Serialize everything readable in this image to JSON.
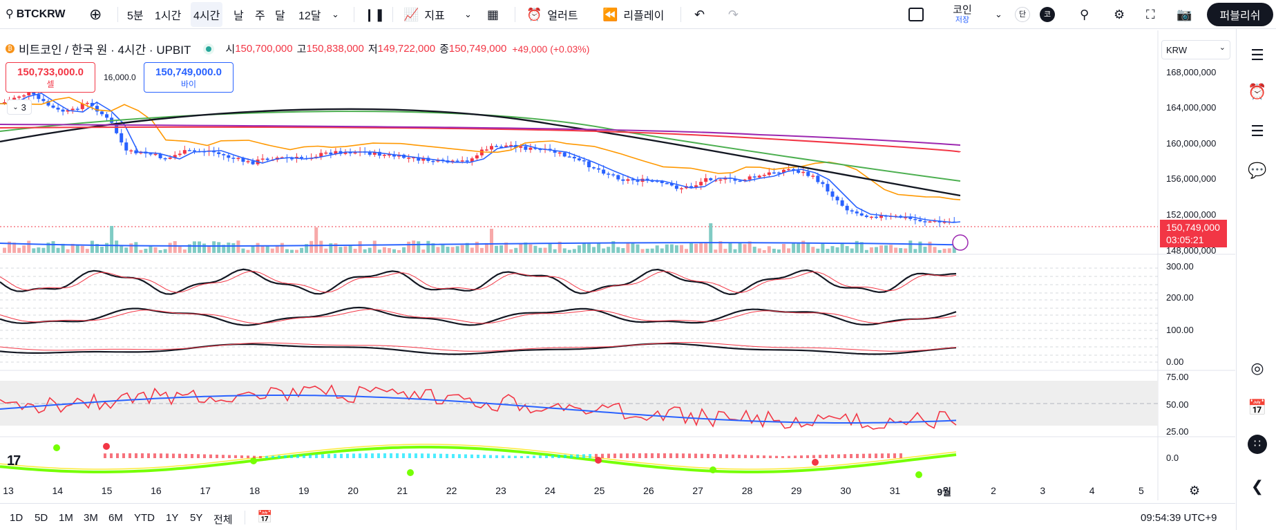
{
  "toolbar": {
    "symbol": "BTCKRW",
    "intervals": [
      "5분",
      "1시간",
      "4시간",
      "날",
      "주",
      "달",
      "12달"
    ],
    "active_interval": "4시간",
    "indicators_label": "지표",
    "alert_label": "얼러트",
    "replay_label": "리플레이",
    "product_label": "코인",
    "product_sub": "저장",
    "mode_a": "단",
    "mode_b": "코",
    "publish_label": "퍼블리쉬"
  },
  "legend": {
    "title": "비트코인 / 한국 원 · 4시간 · UPBIT",
    "open_label": "시",
    "open": "150,700,000",
    "high_label": "고",
    "high": "150,838,000",
    "low_label": "저",
    "low": "149,722,000",
    "close_label": "종",
    "close": "150,749,000",
    "change": "+49,000 (+0.03%)",
    "sell_price": "150,733,000.0",
    "sell_label": "셀",
    "spread": "16,000.0",
    "buy_price": "150,749,000.0",
    "buy_label": "바이",
    "collapsed_count": "3"
  },
  "currency": "KRW",
  "price_scale": [
    "168,000,000",
    "164,000,000",
    "160,000,000",
    "156,000,000",
    "152,000,000",
    "148,000,000"
  ],
  "last_price": "150,749,000",
  "countdown": "03:05:21",
  "osc_scale": [
    "300.00",
    "200.00",
    "100.00",
    "0.00"
  ],
  "rsi_scale": [
    "75.00",
    "50.00",
    "25.00"
  ],
  "bottom_scale": "0.0",
  "time_axis": [
    "13",
    "14",
    "15",
    "16",
    "17",
    "18",
    "19",
    "20",
    "21",
    "22",
    "23",
    "24",
    "25",
    "26",
    "27",
    "28",
    "29",
    "30",
    "31",
    "9월",
    "2",
    "3",
    "4",
    "5"
  ],
  "ranges": [
    "1D",
    "5D",
    "1M",
    "3M",
    "6M",
    "YTD",
    "1Y",
    "5Y",
    "전체"
  ],
  "clock": "09:54:39 UTC+9",
  "colors": {
    "up": "#f23645",
    "down": "#2962ff",
    "vol_up": "#f7a9a9",
    "vol_down": "#80cbc4"
  }
}
